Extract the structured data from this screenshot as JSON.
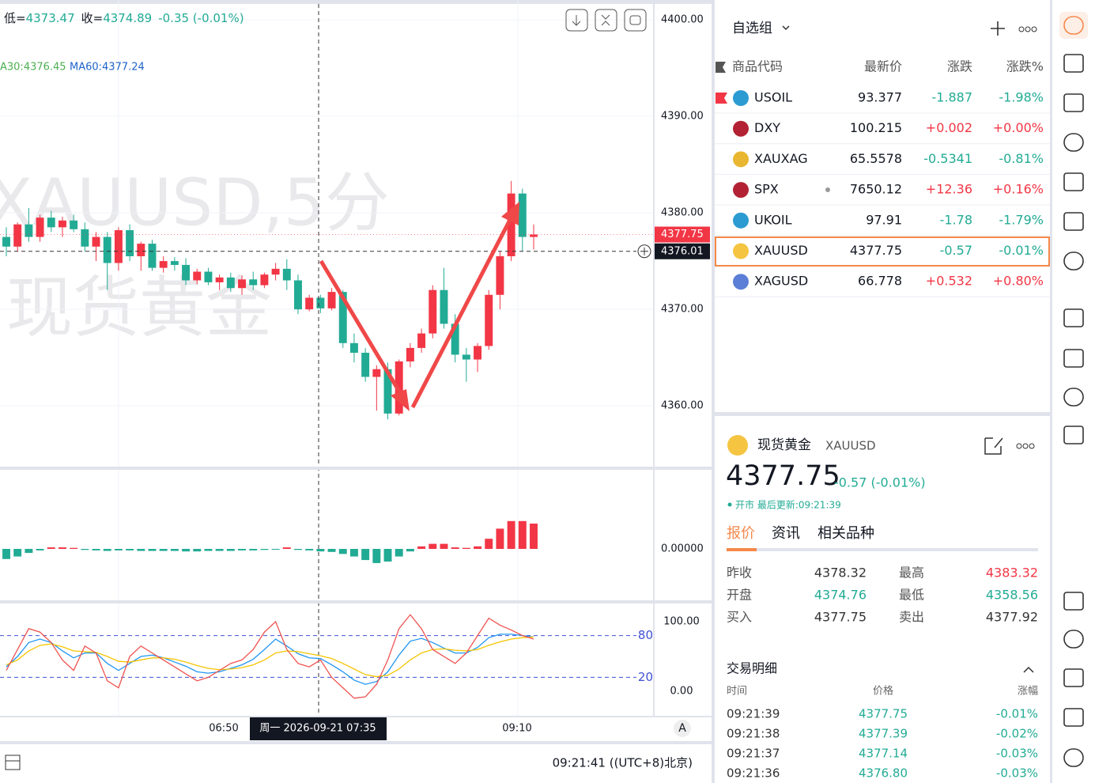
{
  "toolbar": {
    "low_label": "低=",
    "low": "4373.47",
    "close_label": "收=",
    "close": "4374.89",
    "change": "-0.35 (-0.01%)"
  },
  "chart_data": {
    "type": "candlestick",
    "watermark": [
      "XAUUSD,5分",
      "现货黄金"
    ],
    "ma_legend": [
      "A30:4376.45",
      "MA60:4377.24"
    ],
    "ohlc": [
      [
        4377.5,
        4378.5,
        4375.5,
        4376.5
      ],
      [
        4376.5,
        4379,
        4376,
        4378.8
      ],
      [
        4378.8,
        4380.5,
        4377,
        4377.5
      ],
      [
        4377.5,
        4379.8,
        4377,
        4379.5
      ],
      [
        4379.5,
        4380.2,
        4378,
        4378.5
      ],
      [
        4378.5,
        4379.6,
        4377.5,
        4379.2
      ],
      [
        4379.2,
        4379.8,
        4378,
        4378.3
      ],
      [
        4378.3,
        4379,
        4376,
        4376.5
      ],
      [
        4376.5,
        4378,
        4375,
        4377.5
      ],
      [
        4377.5,
        4378,
        4372,
        4374.8
      ],
      [
        4374.8,
        4378.5,
        4374,
        4378.2
      ],
      [
        4378.2,
        4378.8,
        4375,
        4375.5
      ],
      [
        4375.5,
        4377,
        4374,
        4376.8
      ],
      [
        4376.8,
        4377.2,
        4374,
        4374.3
      ],
      [
        4374.3,
        4375.5,
        4373.8,
        4375
      ],
      [
        4375,
        4375.4,
        4374,
        4374.6
      ],
      [
        4374.6,
        4375.3,
        4372.5,
        4373
      ],
      [
        4373,
        4374.2,
        4372.6,
        4373.9
      ],
      [
        4373.9,
        4374.3,
        4372.5,
        4372.8
      ],
      [
        4372.8,
        4373.6,
        4372,
        4373.3
      ],
      [
        4373.3,
        4373.8,
        4371.8,
        4372.2
      ],
      [
        4372.2,
        4373.5,
        4371.5,
        4373.1
      ],
      [
        4373.1,
        4373.9,
        4372,
        4372.5
      ],
      [
        4372.5,
        4373.8,
        4372.2,
        4373.6
      ],
      [
        4373.6,
        4374.8,
        4373,
        4374.2
      ],
      [
        4374.2,
        4375.2,
        4372,
        4373
      ],
      [
        4373,
        4373.6,
        4369.5,
        4370
      ],
      [
        4370,
        4371.5,
        4369.8,
        4371.2
      ],
      [
        4371.2,
        4371.5,
        4369.6,
        4370.1
      ],
      [
        4370.1,
        4372.2,
        4369.9,
        4371.8
      ],
      [
        4371.8,
        4372,
        4366,
        4366.5
      ],
      [
        4366.5,
        4367.5,
        4364.5,
        4365.5
      ],
      [
        4365.5,
        4366,
        4362.5,
        4363
      ],
      [
        4363,
        4364.2,
        4359.5,
        4363.8
      ],
      [
        4363.8,
        4364.5,
        4358.6,
        4359.2
      ],
      [
        4359.2,
        4364.8,
        4359,
        4364.6
      ],
      [
        4364.6,
        4366.5,
        4364,
        4366
      ],
      [
        4366,
        4368,
        4365.5,
        4367.5
      ],
      [
        4367.5,
        4372.5,
        4367,
        4372
      ],
      [
        4372,
        4374.3,
        4368,
        4368.5
      ],
      [
        4368.5,
        4369.5,
        4364.5,
        4365.3
      ],
      [
        4365.3,
        4366,
        4362.5,
        4364.8
      ],
      [
        4364.8,
        4366.5,
        4363.5,
        4366.2
      ],
      [
        4366.2,
        4372,
        4365.8,
        4371.5
      ],
      [
        4371.5,
        4376,
        4370,
        4375.5
      ],
      [
        4375.5,
        4383.3,
        4375,
        4382
      ],
      [
        4382,
        4382.5,
        4376,
        4377.5
      ],
      [
        4377.5,
        4378.8,
        4376.2,
        4377.75
      ]
    ],
    "up_color": "#f23645",
    "down_color": "#22ab94",
    "ylim": [
      4353.7,
      4402.05
    ],
    "yticks": [
      {
        "value": 4400,
        "label": "4400.00"
      },
      {
        "value": 4390,
        "label": "4390.00"
      },
      {
        "value": 4380,
        "label": "4380.00"
      },
      {
        "value": 4370,
        "label": "4370.00"
      },
      {
        "value": 4360,
        "label": "4360.00"
      }
    ],
    "price_line": {
      "value": 4377.75,
      "label": "4377.75"
    },
    "crosshair": {
      "value": 4376.01,
      "label": "4376.01",
      "time": "周一 2026-09-21 07:35"
    },
    "time_labels": [
      "06:50",
      "09:10"
    ],
    "macd": {
      "hist": [
        -0.2,
        -0.15,
        -0.08,
        -0.03,
        0.03,
        0.03,
        0.02,
        -0.02,
        -0.03,
        -0.04,
        -0.03,
        -0.03,
        -0.04,
        -0.04,
        -0.04,
        -0.04,
        -0.05,
        -0.05,
        -0.04,
        -0.04,
        -0.04,
        -0.03,
        -0.03,
        -0.02,
        -0.01,
        0.03,
        -0.02,
        -0.03,
        -0.05,
        -0.06,
        -0.1,
        -0.15,
        -0.22,
        -0.28,
        -0.25,
        -0.15,
        -0.05,
        0.05,
        0.1,
        0.1,
        0.03,
        0.02,
        0.05,
        0.2,
        0.4,
        0.55,
        0.55,
        0.5
      ],
      "ylim": [
        -1.0,
        1.5
      ],
      "yticks": [
        {
          "value": 0,
          "label": "0.00000"
        }
      ]
    },
    "kdj": {
      "series": [
        {
          "color": "#2196f3",
          "values": [
            35,
            50,
            70,
            75,
            70,
            58,
            48,
            55,
            55,
            40,
            30,
            40,
            50,
            52,
            48,
            42,
            36,
            28,
            26,
            28,
            33,
            38,
            46,
            60,
            75,
            65,
            54,
            48,
            47,
            38,
            28,
            16,
            10,
            14,
            28,
            52,
            72,
            76,
            70,
            62,
            55,
            55,
            63,
            77,
            82,
            82,
            80,
            78
          ]
        },
        {
          "color": "#f5c400",
          "values": [
            38,
            45,
            58,
            66,
            68,
            64,
            58,
            57,
            56,
            50,
            43,
            42,
            45,
            48,
            48,
            46,
            42,
            37,
            33,
            31,
            32,
            34,
            38,
            45,
            55,
            58,
            57,
            54,
            51,
            47,
            40,
            32,
            24,
            21,
            23,
            32,
            45,
            55,
            60,
            61,
            59,
            58,
            60,
            66,
            71,
            75,
            77,
            78
          ]
        },
        {
          "color": "#ef5350",
          "values": [
            30,
            60,
            90,
            85,
            70,
            45,
            30,
            65,
            55,
            15,
            5,
            50,
            65,
            55,
            45,
            35,
            25,
            15,
            20,
            30,
            40,
            45,
            60,
            85,
            100,
            60,
            40,
            35,
            45,
            20,
            5,
            -10,
            -8,
            10,
            45,
            90,
            110,
            90,
            60,
            50,
            40,
            55,
            80,
            105,
            95,
            88,
            80,
            75
          ]
        }
      ],
      "ylim": [
        -35.2,
        123.9
      ],
      "yticks": [
        {
          "value": 100,
          "label": "100.00"
        },
        {
          "value": 0,
          "label": "0.00"
        }
      ],
      "levels": [
        80,
        20
      ]
    }
  },
  "status_bar": {
    "clock": "09:21:41 ((UTC+8)北京)",
    "scale_button": "A"
  },
  "watchlist": {
    "title": "自选组",
    "columns": [
      "商品代码",
      "最新价",
      "涨跌",
      "涨跌%"
    ],
    "rows": [
      [
        "USOIL",
        "93.377",
        "-1.887",
        "-1.98%"
      ],
      [
        "DXY",
        "100.215",
        "+0.002",
        "+0.00%"
      ],
      [
        "XAUXAG",
        "65.5578",
        "-0.5341",
        "-0.81%"
      ],
      [
        "SPX",
        "7650.12",
        "+12.36",
        "+0.16%"
      ],
      [
        "UKOIL",
        "97.91",
        "-1.78",
        "-1.79%"
      ],
      [
        "XAUUSD",
        "4377.75",
        "-0.57",
        "-0.01%"
      ],
      [
        "XAGUSD",
        "66.778",
        "+0.532",
        "+0.80%"
      ]
    ]
  },
  "detail": {
    "name": "现货黄金",
    "symbol": "XAUUSD",
    "price": "4377.75",
    "change": "-0.57 (-0.01%)",
    "status": "开市 最后更新:09:21:39",
    "tabs": [
      "报价",
      "资讯",
      "相关品种"
    ],
    "stats": [
      [
        "昨收",
        "4378.32"
      ],
      [
        "最高",
        "4383.32"
      ],
      [
        "开盘",
        "4374.76"
      ],
      [
        "最低",
        "4358.56"
      ],
      [
        "买入",
        "4377.75"
      ],
      [
        "卖出",
        "4377.92"
      ]
    ],
    "trades": {
      "title": "交易明细",
      "columns": [
        "时间",
        "价格",
        "涨幅"
      ],
      "rows": [
        [
          "09:21:39",
          "4377.75",
          "-0.01%"
        ],
        [
          "09:21:38",
          "4377.39",
          "-0.02%"
        ],
        [
          "09:21:37",
          "4377.14",
          "-0.03%"
        ],
        [
          "09:21:36",
          "4376.80",
          "-0.03%"
        ]
      ]
    }
  }
}
